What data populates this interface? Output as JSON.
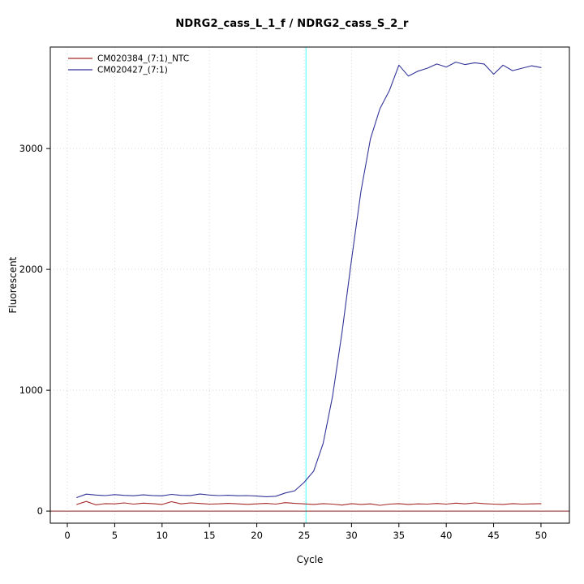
{
  "chart_data": {
    "type": "line",
    "title": "NDRG2_cass_L_1_f / NDRG2_cass_S_2_r",
    "xlabel": "Cycle",
    "ylabel": "Fluorescent",
    "xlim": [
      -1.8,
      53
    ],
    "ylim": [
      -100,
      3840
    ],
    "x_ticks": [
      0,
      5,
      10,
      15,
      20,
      25,
      30,
      35,
      40,
      45,
      50
    ],
    "y_ticks": [
      0,
      1000,
      2000,
      3000
    ],
    "grid": true,
    "legend_position": "top-left",
    "threshold_cycle_line": {
      "x": 25.2,
      "color": "#80ffff"
    },
    "baseline": {
      "y": 0,
      "color": "#8b2323"
    },
    "x": [
      1,
      2,
      3,
      4,
      5,
      6,
      7,
      8,
      9,
      10,
      11,
      12,
      13,
      14,
      15,
      16,
      17,
      18,
      19,
      20,
      21,
      22,
      23,
      24,
      25,
      26,
      27,
      28,
      29,
      30,
      31,
      32,
      33,
      34,
      35,
      36,
      37,
      38,
      39,
      40,
      41,
      42,
      43,
      44,
      45,
      46,
      47,
      48,
      49,
      50
    ],
    "series": [
      {
        "name": "CM020384_(7:1)_NTC",
        "color": "#a52a2a",
        "values": [
          55,
          80,
          52,
          62,
          60,
          68,
          58,
          66,
          62,
          55,
          78,
          60,
          68,
          63,
          58,
          60,
          64,
          60,
          56,
          60,
          64,
          58,
          70,
          64,
          60,
          55,
          62,
          58,
          50,
          62,
          55,
          60,
          48,
          58,
          62,
          55,
          60,
          58,
          63,
          58,
          66,
          60,
          68,
          62,
          58,
          55,
          62,
          58,
          60,
          62
        ]
      },
      {
        "name": "CM020427_(7:1)",
        "color": "#333399",
        "values": [
          112,
          140,
          133,
          128,
          136,
          130,
          127,
          134,
          129,
          126,
          138,
          130,
          129,
          141,
          133,
          128,
          131,
          127,
          128,
          124,
          119,
          123,
          150,
          168,
          238,
          330,
          560,
          950,
          1480,
          2080,
          2650,
          3080,
          3330,
          3480,
          3690,
          3600,
          3640,
          3665,
          3700,
          3675,
          3715,
          3695,
          3710,
          3700,
          3615,
          3690,
          3645,
          3665,
          3685,
          3670
        ]
      }
    ]
  }
}
